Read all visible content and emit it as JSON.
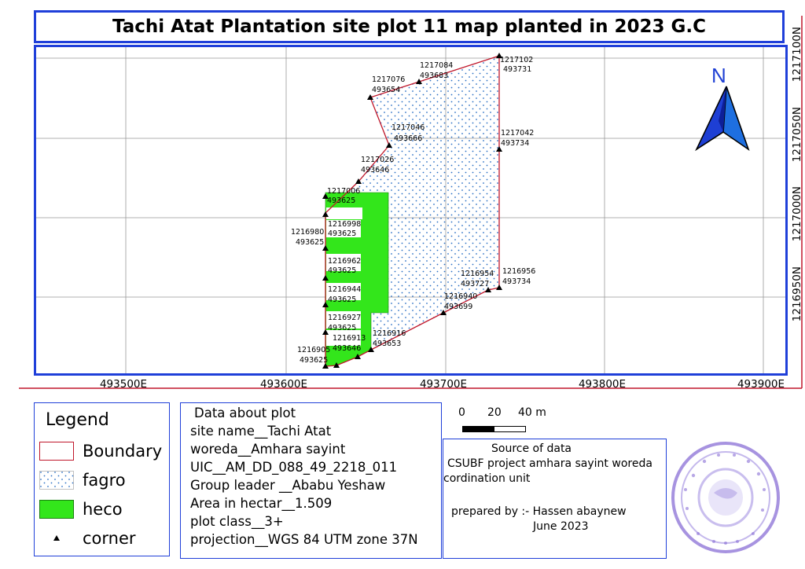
{
  "title": "Tachi Atat Plantation site plot 11 map planted in 2023 G.C",
  "map": {
    "x_ticks": [
      "493500E",
      "493600E",
      "493700E",
      "493800E",
      "493900E"
    ],
    "y_ticks": [
      "1217100N",
      "1217050N",
      "1217000N",
      "1216950N"
    ],
    "north_label": "N",
    "colors": {
      "frame": "#1f3fd9",
      "boundary": "#c0172b",
      "heco": "#33e61b",
      "fagro_dot": "#2a6fc4",
      "grid": "#999999"
    },
    "corners": [
      {
        "northing": "1217102",
        "easting": "493731"
      },
      {
        "northing": "1217084",
        "easting": "493683"
      },
      {
        "northing": "1217076",
        "easting": "493654"
      },
      {
        "northing": "1217046",
        "easting": "493666"
      },
      {
        "northing": "1217042",
        "easting": "493734"
      },
      {
        "northing": "1217026",
        "easting": "493646"
      },
      {
        "northing": "1217006",
        "easting": "493625"
      },
      {
        "northing": "1216998",
        "easting": "493625"
      },
      {
        "northing": "1216980",
        "easting": "493625"
      },
      {
        "northing": "1216962",
        "easting": "493625"
      },
      {
        "northing": "1216956",
        "easting": "493734"
      },
      {
        "northing": "1216954",
        "easting": "493727"
      },
      {
        "northing": "1216944",
        "easting": "493625"
      },
      {
        "northing": "1216940",
        "easting": "493699"
      },
      {
        "northing": "1216927",
        "easting": "493625"
      },
      {
        "northing": "1216916",
        "easting": "493653"
      },
      {
        "northing": "1216913",
        "easting": "493646"
      },
      {
        "northing": "1216905",
        "easting": "493625"
      }
    ]
  },
  "legend": {
    "title": "Legend",
    "items": [
      {
        "label": "Boundary",
        "icon": "boundary-swatch"
      },
      {
        "label": "fagro",
        "icon": "dotted-fill-swatch"
      },
      {
        "label": "heco",
        "icon": "green-fill-swatch"
      },
      {
        "label": "corner",
        "icon": "triangle-icon"
      }
    ]
  },
  "plot_info": {
    "heading": "Data about plot",
    "site_name": "site name__Tachi Atat",
    "woreda": "woreda__Amhara sayint",
    "uic": "UIC__AM_DD_088_49_2218_011",
    "group_leader": "Group leader __Ababu Yeshaw",
    "area": "Area in hectar__1.509",
    "plot_class": "plot class__3+",
    "projection": "projection__WGS 84 UTM zone 37N"
  },
  "scale": {
    "labels": [
      "0",
      "20",
      "40 m"
    ]
  },
  "source": {
    "heading": "Source of data",
    "line1": "CSUBF project amhara sayint woreda",
    "line2": "cordination unit",
    "prepared": "prepared by :- Hassen abaynew",
    "date": "June 2023"
  }
}
